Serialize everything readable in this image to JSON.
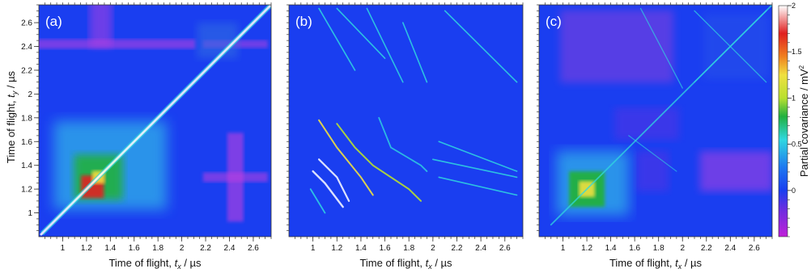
{
  "chart_data": {
    "type": "heatmap",
    "panels": [
      {
        "label": "(a)",
        "xlabel_main": "Time of flight, ",
        "xlabel_var": "t",
        "xlabel_sub": "x",
        "xlabel_unit": "/ µs"
      },
      {
        "label": "(b)",
        "xlabel_main": "Time of flight, ",
        "xlabel_var": "t",
        "xlabel_sub": "x",
        "xlabel_unit": "/ µs"
      },
      {
        "label": "(c)",
        "xlabel_main": "Time of flight, ",
        "xlabel_var": "t",
        "xlabel_sub": "x",
        "xlabel_unit": "/ µs"
      }
    ],
    "ylabel_main": "Time of flight, ",
    "ylabel_var": "t",
    "ylabel_sub": "y",
    "ylabel_unit": "/ µs",
    "xlim": [
      0.8,
      2.75
    ],
    "ylim": [
      0.8,
      2.75
    ],
    "x_ticks": [
      "1",
      "1.2",
      "1.4",
      "1.6",
      "1.8",
      "2",
      "2.2",
      "2.4",
      "2.6"
    ],
    "x_tick_values": [
      1,
      1.2,
      1.4,
      1.6,
      1.8,
      2,
      2.2,
      2.4,
      2.6
    ],
    "y_ticks": [
      "1",
      "1.2",
      "1.4",
      "1.6",
      "1.8",
      "2",
      "2.2",
      "2.4",
      "2.6"
    ],
    "y_tick_values": [
      1,
      1.2,
      1.4,
      1.6,
      1.8,
      2,
      2.2,
      2.4,
      2.6
    ],
    "colorbar": {
      "label": "Partial covariance / mV",
      "label_sup": "2",
      "ticks": [
        "0",
        "0.5",
        "1",
        "1.5",
        "2"
      ],
      "tick_values": [
        0,
        0.5,
        1,
        1.5,
        2
      ],
      "range": [
        -0.5,
        2
      ],
      "colors": [
        "#b020d0",
        "#6030e0",
        "#1a3ef0",
        "#1e7af0",
        "#30d0e0",
        "#20b040",
        "#b8e030",
        "#f0e040",
        "#f08020",
        "#e02020",
        "#ffffff"
      ]
    }
  }
}
